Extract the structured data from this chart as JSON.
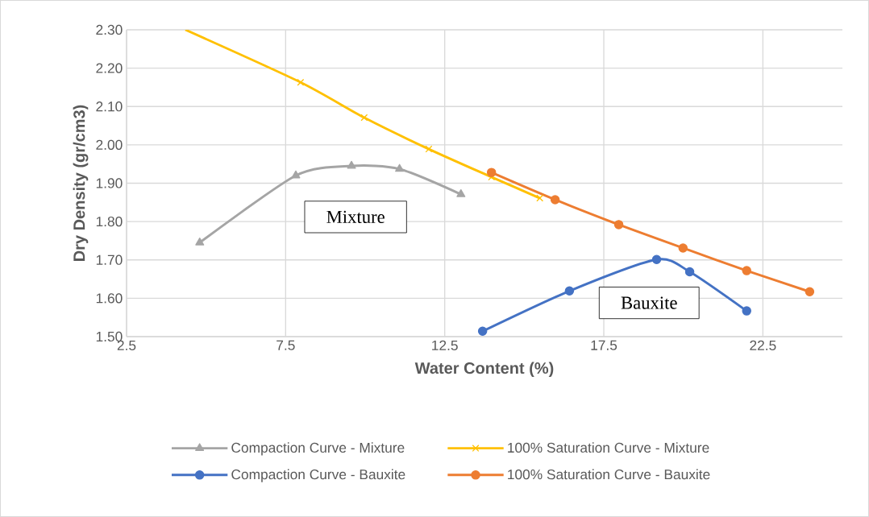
{
  "chart_data": {
    "type": "line",
    "xlabel": "Water Content (%)",
    "ylabel": "Dry Density (gr/cm3)",
    "xlim": [
      2.5,
      25
    ],
    "ylim": [
      1.5,
      2.3
    ],
    "xticks": [
      2.5,
      7.5,
      12.5,
      17.5,
      22.5
    ],
    "yticks": [
      {
        "value": 1.5,
        "label": "1.50"
      },
      {
        "value": 1.6,
        "label": "1.60"
      },
      {
        "value": 1.7,
        "label": "1.70"
      },
      {
        "value": 1.8,
        "label": "1.80"
      },
      {
        "value": 1.9,
        "label": "1.90"
      },
      {
        "value": 2.0,
        "label": "2.00"
      },
      {
        "value": 2.1,
        "label": "2.10"
      },
      {
        "value": 2.2,
        "label": "2.20"
      },
      {
        "value": 2.3,
        "label": "2.30"
      }
    ],
    "grid": true,
    "legend": "bottom",
    "series": [
      {
        "name": "Compaction Curve - Mixture",
        "color": "#a5a5a5",
        "marker": "triangle",
        "x": [
          4.8,
          7.82,
          9.57,
          11.08,
          13.01
        ],
        "values": [
          1.745,
          1.92,
          1.945,
          1.937,
          1.871
        ]
      },
      {
        "name": "100% Saturation Curve - Mixture",
        "color": "#ffc000",
        "marker": "cross",
        "x": [
          4.35,
          7.97,
          9.97,
          12.0,
          13.97,
          15.49
        ],
        "values": [
          2.3,
          2.163,
          2.071,
          1.989,
          1.916,
          1.861
        ]
      },
      {
        "name": "Compaction Curve - Bauxite",
        "color": "#4472c4",
        "marker": "circle",
        "x": [
          13.69,
          16.42,
          19.16,
          20.2,
          21.99
        ],
        "values": [
          1.514,
          1.619,
          1.701,
          1.669,
          1.567
        ]
      },
      {
        "name": "100% Saturation Curve - Bauxite",
        "color": "#ed7d31",
        "marker": "circle",
        "x": [
          13.97,
          15.97,
          17.97,
          19.99,
          21.99,
          23.97
        ],
        "values": [
          1.928,
          1.857,
          1.792,
          1.731,
          1.672,
          1.617
        ]
      }
    ],
    "annotations": [
      "Mixture",
      "Bauxite"
    ]
  }
}
